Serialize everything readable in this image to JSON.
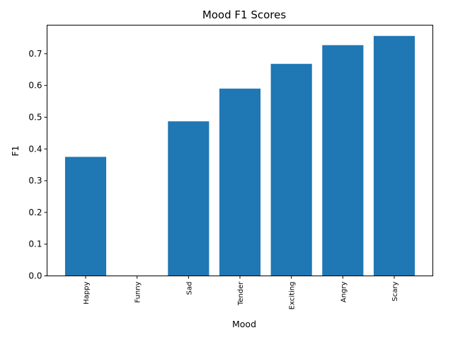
{
  "chart_data": {
    "type": "bar",
    "title": "Mood F1 Scores",
    "xlabel": "Mood",
    "ylabel": "F1",
    "categories": [
      "Happy",
      "Funny",
      "Sad",
      "Tender",
      "Exciting",
      "Angry",
      "Scary"
    ],
    "values": [
      0.375,
      0.0,
      0.487,
      0.59,
      0.668,
      0.727,
      0.756
    ],
    "ylim": [
      0,
      0.79
    ],
    "yticks": [
      "0.0",
      "0.1",
      "0.2",
      "0.3",
      "0.4",
      "0.5",
      "0.6",
      "0.7"
    ],
    "grid": false,
    "legend": "none",
    "bar_color": "#1f77b4"
  }
}
